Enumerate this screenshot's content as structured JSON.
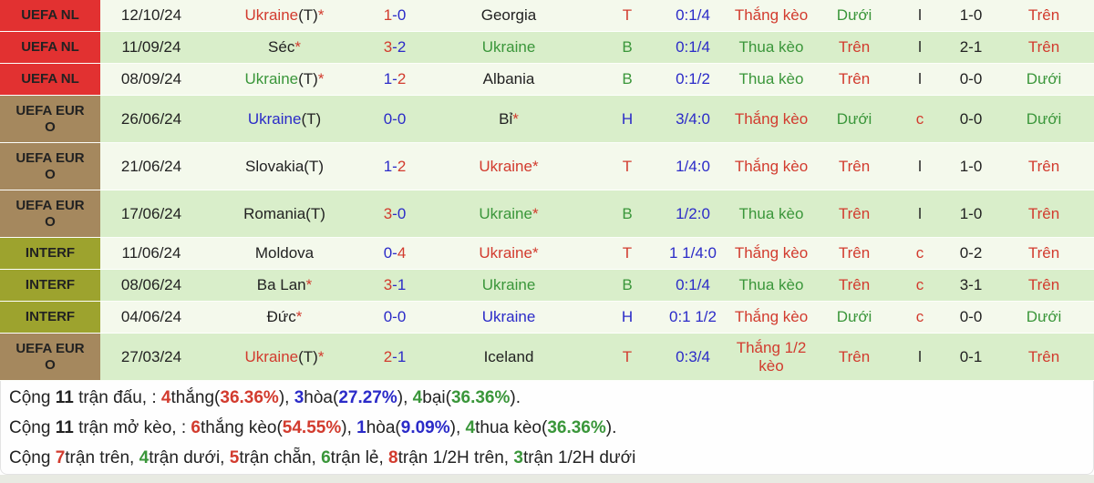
{
  "colors": {
    "red": "#d23b2e",
    "green": "#3a963a",
    "blue": "#2b2bc8",
    "black": "#222222",
    "row_odd": "#f4f9ec",
    "row_even": "#d9eeca",
    "league_uefa_nl": "#e23131",
    "league_uefa_euro": "#a5885e",
    "league_interf": "#9da32e",
    "league_text": "#fcf6e8",
    "summary_bg": "#fefefe",
    "bottom_strip": "#e8eae2"
  },
  "table": {
    "rows": [
      {
        "league": {
          "label": "UEFA NL",
          "key": "uefa-nl"
        },
        "date": "12/10/24",
        "home": [
          {
            "t": "Ukraine",
            "c": "red"
          },
          {
            "t": "(T)",
            "c": "black"
          },
          {
            "t": "*",
            "c": "red"
          }
        ],
        "score": [
          {
            "t": "1",
            "c": "red"
          },
          {
            "t": "-0",
            "c": "blue"
          }
        ],
        "away": [
          {
            "t": "Georgia",
            "c": "black"
          }
        ],
        "side": {
          "t": "T",
          "c": "red"
        },
        "odds": {
          "t": "0:1/4",
          "c": "blue"
        },
        "result": {
          "t": "Thắng kèo",
          "c": "red"
        },
        "ou_full": {
          "t": "Dưới",
          "c": "green"
        },
        "flag": {
          "t": "l",
          "c": "black"
        },
        "half_score": {
          "t": "1-0",
          "c": "black"
        },
        "ou_half": {
          "t": "Trên",
          "c": "red"
        }
      },
      {
        "league": {
          "label": "UEFA NL",
          "key": "uefa-nl"
        },
        "date": "11/09/24",
        "home": [
          {
            "t": "Séc",
            "c": "black"
          },
          {
            "t": "*",
            "c": "red"
          }
        ],
        "score": [
          {
            "t": "3",
            "c": "red"
          },
          {
            "t": "-2",
            "c": "blue"
          }
        ],
        "away": [
          {
            "t": "Ukraine",
            "c": "green"
          }
        ],
        "side": {
          "t": "B",
          "c": "green"
        },
        "odds": {
          "t": "0:1/4",
          "c": "blue"
        },
        "result": {
          "t": "Thua kèo",
          "c": "green"
        },
        "ou_full": {
          "t": "Trên",
          "c": "red"
        },
        "flag": {
          "t": "l",
          "c": "black"
        },
        "half_score": {
          "t": "2-1",
          "c": "black"
        },
        "ou_half": {
          "t": "Trên",
          "c": "red"
        }
      },
      {
        "league": {
          "label": "UEFA NL",
          "key": "uefa-nl"
        },
        "date": "08/09/24",
        "home": [
          {
            "t": "Ukraine",
            "c": "green"
          },
          {
            "t": "(T)",
            "c": "black"
          },
          {
            "t": "*",
            "c": "red"
          }
        ],
        "score": [
          {
            "t": "1-",
            "c": "blue"
          },
          {
            "t": "2",
            "c": "red"
          }
        ],
        "away": [
          {
            "t": "Albania",
            "c": "black"
          }
        ],
        "side": {
          "t": "B",
          "c": "green"
        },
        "odds": {
          "t": "0:1/2",
          "c": "blue"
        },
        "result": {
          "t": "Thua kèo",
          "c": "green"
        },
        "ou_full": {
          "t": "Trên",
          "c": "red"
        },
        "flag": {
          "t": "l",
          "c": "black"
        },
        "half_score": {
          "t": "0-0",
          "c": "black"
        },
        "ou_half": {
          "t": "Dưới",
          "c": "green"
        }
      },
      {
        "league": {
          "label": "UEFA EURO",
          "key": "uefa-euro"
        },
        "date": "26/06/24",
        "home": [
          {
            "t": "Ukraine",
            "c": "blue"
          },
          {
            "t": "(T)",
            "c": "black"
          }
        ],
        "score": [
          {
            "t": "0-0",
            "c": "blue"
          }
        ],
        "away": [
          {
            "t": "Bỉ",
            "c": "black"
          },
          {
            "t": "*",
            "c": "red"
          }
        ],
        "side": {
          "t": "H",
          "c": "blue"
        },
        "odds": {
          "t": "3/4:0",
          "c": "blue"
        },
        "result": {
          "t": "Thắng kèo",
          "c": "red"
        },
        "ou_full": {
          "t": "Dưới",
          "c": "green"
        },
        "flag": {
          "t": "c",
          "c": "red"
        },
        "half_score": {
          "t": "0-0",
          "c": "black"
        },
        "ou_half": {
          "t": "Dưới",
          "c": "green"
        }
      },
      {
        "league": {
          "label": "UEFA EURO",
          "key": "uefa-euro"
        },
        "date": "21/06/24",
        "home": [
          {
            "t": "Slovakia(T)",
            "c": "black"
          }
        ],
        "score": [
          {
            "t": "1-",
            "c": "blue"
          },
          {
            "t": "2",
            "c": "red"
          }
        ],
        "away": [
          {
            "t": "Ukraine*",
            "c": "red"
          }
        ],
        "side": {
          "t": "T",
          "c": "red"
        },
        "odds": {
          "t": "1/4:0",
          "c": "blue"
        },
        "result": {
          "t": "Thắng kèo",
          "c": "red"
        },
        "ou_full": {
          "t": "Trên",
          "c": "red"
        },
        "flag": {
          "t": "l",
          "c": "black"
        },
        "half_score": {
          "t": "1-0",
          "c": "black"
        },
        "ou_half": {
          "t": "Trên",
          "c": "red"
        }
      },
      {
        "league": {
          "label": "UEFA EURO",
          "key": "uefa-euro"
        },
        "date": "17/06/24",
        "home": [
          {
            "t": "Romania(T)",
            "c": "black"
          }
        ],
        "score": [
          {
            "t": "3",
            "c": "red"
          },
          {
            "t": "-0",
            "c": "blue"
          }
        ],
        "away": [
          {
            "t": "Ukraine",
            "c": "green"
          },
          {
            "t": "*",
            "c": "red"
          }
        ],
        "side": {
          "t": "B",
          "c": "green"
        },
        "odds": {
          "t": "1/2:0",
          "c": "blue"
        },
        "result": {
          "t": "Thua kèo",
          "c": "green"
        },
        "ou_full": {
          "t": "Trên",
          "c": "red"
        },
        "flag": {
          "t": "l",
          "c": "black"
        },
        "half_score": {
          "t": "1-0",
          "c": "black"
        },
        "ou_half": {
          "t": "Trên",
          "c": "red"
        }
      },
      {
        "league": {
          "label": "INTERF",
          "key": "interf"
        },
        "date": "11/06/24",
        "home": [
          {
            "t": "Moldova",
            "c": "black"
          }
        ],
        "score": [
          {
            "t": "0-",
            "c": "blue"
          },
          {
            "t": "4",
            "c": "red"
          }
        ],
        "away": [
          {
            "t": "Ukraine*",
            "c": "red"
          }
        ],
        "side": {
          "t": "T",
          "c": "red"
        },
        "odds": {
          "t": "1 1/4:0",
          "c": "blue"
        },
        "result": {
          "t": "Thắng kèo",
          "c": "red"
        },
        "ou_full": {
          "t": "Trên",
          "c": "red"
        },
        "flag": {
          "t": "c",
          "c": "red"
        },
        "half_score": {
          "t": "0-2",
          "c": "black"
        },
        "ou_half": {
          "t": "Trên",
          "c": "red"
        }
      },
      {
        "league": {
          "label": "INTERF",
          "key": "interf"
        },
        "date": "08/06/24",
        "home": [
          {
            "t": "Ba Lan",
            "c": "black"
          },
          {
            "t": "*",
            "c": "red"
          }
        ],
        "score": [
          {
            "t": "3",
            "c": "red"
          },
          {
            "t": "-1",
            "c": "blue"
          }
        ],
        "away": [
          {
            "t": "Ukraine",
            "c": "green"
          }
        ],
        "side": {
          "t": "B",
          "c": "green"
        },
        "odds": {
          "t": "0:1/4",
          "c": "blue"
        },
        "result": {
          "t": "Thua kèo",
          "c": "green"
        },
        "ou_full": {
          "t": "Trên",
          "c": "red"
        },
        "flag": {
          "t": "c",
          "c": "red"
        },
        "half_score": {
          "t": "3-1",
          "c": "black"
        },
        "ou_half": {
          "t": "Trên",
          "c": "red"
        }
      },
      {
        "league": {
          "label": "INTERF",
          "key": "interf"
        },
        "date": "04/06/24",
        "home": [
          {
            "t": "Đức",
            "c": "black"
          },
          {
            "t": "*",
            "c": "red"
          }
        ],
        "score": [
          {
            "t": "0-0",
            "c": "blue"
          }
        ],
        "away": [
          {
            "t": "Ukraine",
            "c": "blue"
          }
        ],
        "side": {
          "t": "H",
          "c": "blue"
        },
        "odds": {
          "t": "0:1 1/2",
          "c": "blue"
        },
        "result": {
          "t": "Thắng kèo",
          "c": "red"
        },
        "ou_full": {
          "t": "Dưới",
          "c": "green"
        },
        "flag": {
          "t": "c",
          "c": "red"
        },
        "half_score": {
          "t": "0-0",
          "c": "black"
        },
        "ou_half": {
          "t": "Dưới",
          "c": "green"
        }
      },
      {
        "league": {
          "label": "UEFA EURO",
          "key": "uefa-euro"
        },
        "date": "27/03/24",
        "home": [
          {
            "t": "Ukraine",
            "c": "red"
          },
          {
            "t": "(T)",
            "c": "black"
          },
          {
            "t": "*",
            "c": "red"
          }
        ],
        "score": [
          {
            "t": "2",
            "c": "red"
          },
          {
            "t": "-1",
            "c": "blue"
          }
        ],
        "away": [
          {
            "t": "Iceland",
            "c": "black"
          }
        ],
        "side": {
          "t": "T",
          "c": "red"
        },
        "odds": {
          "t": "0:3/4",
          "c": "blue"
        },
        "result": {
          "t": "Thắng 1/2 kèo",
          "c": "red"
        },
        "ou_full": {
          "t": "Trên",
          "c": "red"
        },
        "flag": {
          "t": "l",
          "c": "black"
        },
        "half_score": {
          "t": "0-1",
          "c": "black"
        },
        "ou_half": {
          "t": "Trên",
          "c": "red"
        }
      }
    ]
  },
  "summary": {
    "lines": [
      {
        "segments": [
          {
            "t": "Cộng ",
            "c": "black"
          },
          {
            "t": "11",
            "c": "black",
            "b": true
          },
          {
            "t": " trận đấu, : ",
            "c": "black"
          },
          {
            "t": "4",
            "c": "red",
            "b": true
          },
          {
            "t": "thắng(",
            "c": "black"
          },
          {
            "t": "36.36%",
            "c": "red",
            "b": true
          },
          {
            "t": "), ",
            "c": "black"
          },
          {
            "t": "3",
            "c": "blue",
            "b": true
          },
          {
            "t": "hòa(",
            "c": "black"
          },
          {
            "t": "27.27%",
            "c": "blue",
            "b": true
          },
          {
            "t": "), ",
            "c": "black"
          },
          {
            "t": "4",
            "c": "green",
            "b": true
          },
          {
            "t": "bại(",
            "c": "black"
          },
          {
            "t": "36.36%",
            "c": "green",
            "b": true
          },
          {
            "t": ").",
            "c": "black"
          }
        ]
      },
      {
        "segments": [
          {
            "t": "Cộng ",
            "c": "black"
          },
          {
            "t": "11",
            "c": "black",
            "b": true
          },
          {
            "t": " trận mở kèo, : ",
            "c": "black"
          },
          {
            "t": "6",
            "c": "red",
            "b": true
          },
          {
            "t": "thắng kèo(",
            "c": "black"
          },
          {
            "t": "54.55%",
            "c": "red",
            "b": true
          },
          {
            "t": "), ",
            "c": "black"
          },
          {
            "t": "1",
            "c": "blue",
            "b": true
          },
          {
            "t": "hòa(",
            "c": "black"
          },
          {
            "t": "9.09%",
            "c": "blue",
            "b": true
          },
          {
            "t": "), ",
            "c": "black"
          },
          {
            "t": "4",
            "c": "green",
            "b": true
          },
          {
            "t": "thua kèo(",
            "c": "black"
          },
          {
            "t": "36.36%",
            "c": "green",
            "b": true
          },
          {
            "t": ").",
            "c": "black"
          }
        ]
      },
      {
        "segments": [
          {
            "t": "Cộng ",
            "c": "black"
          },
          {
            "t": "7",
            "c": "red",
            "b": true
          },
          {
            "t": "trận trên, ",
            "c": "black"
          },
          {
            "t": "4",
            "c": "green",
            "b": true
          },
          {
            "t": "trận dưới, ",
            "c": "black"
          },
          {
            "t": "5",
            "c": "red",
            "b": true
          },
          {
            "t": "trận chẵn, ",
            "c": "black"
          },
          {
            "t": "6",
            "c": "green",
            "b": true
          },
          {
            "t": "trận lẻ, ",
            "c": "black"
          },
          {
            "t": "8",
            "c": "red",
            "b": true
          },
          {
            "t": "trận 1/2H trên, ",
            "c": "black"
          },
          {
            "t": "3",
            "c": "green",
            "b": true
          },
          {
            "t": "trận 1/2H dưới",
            "c": "black"
          }
        ]
      }
    ]
  }
}
